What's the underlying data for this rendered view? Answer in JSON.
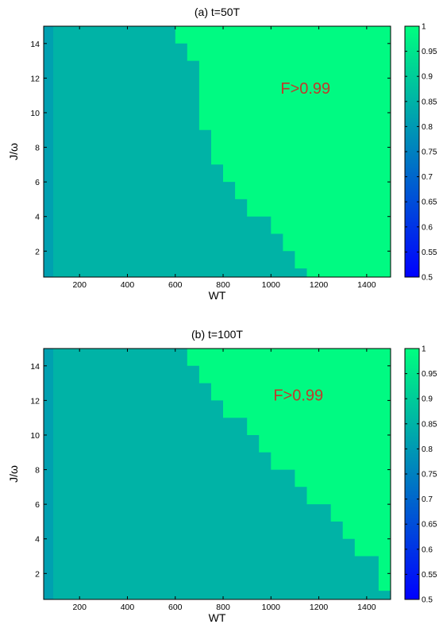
{
  "colors": {
    "background": "#ffffff",
    "low_color": "#0000ff",
    "high_color": "#00ff80",
    "colormap": "winter",
    "annotation_color": "#c0392b"
  },
  "chart_data": [
    {
      "type": "heatmap",
      "title": "(a) t=50T",
      "xlabel": "WT",
      "ylabel": "J/ω",
      "xlim": [
        50,
        1500
      ],
      "ylim": [
        0.5,
        15
      ],
      "xticks": [
        200,
        400,
        600,
        800,
        1000,
        1200,
        1400
      ],
      "yticks": [
        2,
        4,
        6,
        8,
        10,
        12,
        14
      ],
      "annotation": "F>0.99",
      "colorbar": {
        "min": 0.5,
        "max": 1,
        "ticks": [
          0.5,
          0.55,
          0.6,
          0.65,
          0.7,
          0.75,
          0.8,
          0.85,
          0.9,
          0.95,
          1
        ]
      },
      "levels": {
        "low": 0.85,
        "high": 0.99
      },
      "boundary": [
        {
          "y": 0.5,
          "x_from": 1150
        },
        {
          "y": 1.5,
          "x_from": 1100
        },
        {
          "y": 2.5,
          "x_from": 1050
        },
        {
          "y": 3.5,
          "x_from": 1000
        },
        {
          "y": 4.5,
          "x_from": 900
        },
        {
          "y": 5.5,
          "x_from": 850
        },
        {
          "y": 6.5,
          "x_from": 800
        },
        {
          "y": 7.5,
          "x_from": 750
        },
        {
          "y": 8.5,
          "x_from": 750
        },
        {
          "y": 9.5,
          "x_from": 700
        },
        {
          "y": 10.5,
          "x_from": 700
        },
        {
          "y": 11.5,
          "x_from": 700
        },
        {
          "y": 12.5,
          "x_from": 700
        },
        {
          "y": 13.5,
          "x_from": 650
        },
        {
          "y": 14.5,
          "x_from": 600
        }
      ]
    },
    {
      "type": "heatmap",
      "title": "(b) t=100T",
      "xlabel": "WT",
      "ylabel": "J/ω",
      "xlim": [
        50,
        1500
      ],
      "ylim": [
        0.5,
        15
      ],
      "xticks": [
        200,
        400,
        600,
        800,
        1000,
        1200,
        1400
      ],
      "yticks": [
        2,
        4,
        6,
        8,
        10,
        12,
        14
      ],
      "annotation": "F>0.99",
      "colorbar": {
        "min": 0.5,
        "max": 1,
        "ticks": [
          0.5,
          0.55,
          0.6,
          0.65,
          0.7,
          0.75,
          0.8,
          0.85,
          0.9,
          0.95,
          1
        ]
      },
      "levels": {
        "low": 0.85,
        "high": 0.99
      },
      "boundary": [
        {
          "y": 0.5,
          "x_from": 1500
        },
        {
          "y": 1.5,
          "x_from": 1450
        },
        {
          "y": 2.5,
          "x_from": 1450
        },
        {
          "y": 3.5,
          "x_from": 1350
        },
        {
          "y": 4.5,
          "x_from": 1300
        },
        {
          "y": 5.5,
          "x_from": 1250
        },
        {
          "y": 6.5,
          "x_from": 1150
        },
        {
          "y": 7.5,
          "x_from": 1100
        },
        {
          "y": 8.5,
          "x_from": 1000
        },
        {
          "y": 9.5,
          "x_from": 950
        },
        {
          "y": 10.5,
          "x_from": 900
        },
        {
          "y": 11.5,
          "x_from": 800
        },
        {
          "y": 12.5,
          "x_from": 750
        },
        {
          "y": 13.5,
          "x_from": 700
        },
        {
          "y": 14.5,
          "x_from": 650
        }
      ]
    }
  ]
}
